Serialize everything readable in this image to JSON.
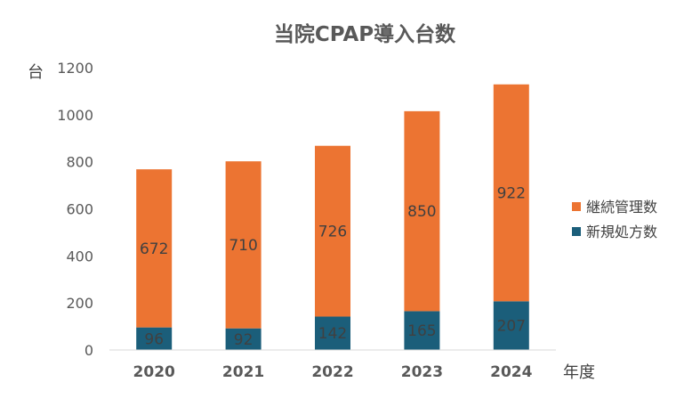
{
  "chart_data": {
    "type": "bar",
    "stacked": true,
    "title": "当院CPAP導入台数",
    "ylabel": "台",
    "xlabel": "年度",
    "ylim": [
      0,
      1200
    ],
    "yticks": [
      0,
      200,
      400,
      600,
      800,
      1000,
      1200
    ],
    "categories": [
      "2020",
      "2021",
      "2022",
      "2023",
      "2024"
    ],
    "series": [
      {
        "name": "新規処方数",
        "color": "#1b5e7a",
        "values": [
          96,
          92,
          142,
          165,
          207
        ]
      },
      {
        "name": "継続管理数",
        "color": "#ec7432",
        "values": [
          672,
          710,
          726,
          850,
          922
        ]
      }
    ],
    "legend": {
      "position": "right",
      "order": [
        "継続管理数",
        "新規処方数"
      ]
    },
    "grid": false
  }
}
